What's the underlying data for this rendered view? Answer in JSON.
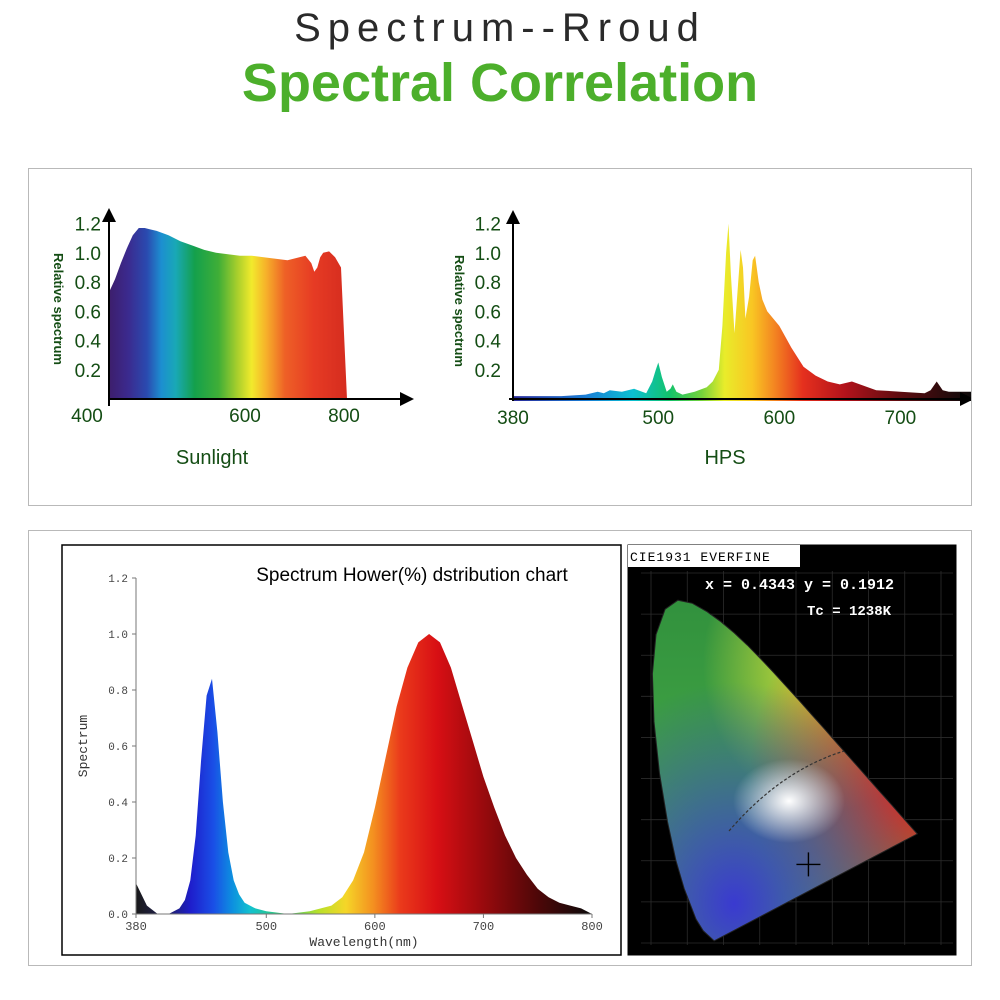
{
  "header": {
    "brand": "Spectrum--Rroud",
    "title": "Spectral Correlation"
  },
  "colors": {
    "title_green": "#4caf2b",
    "label_green": "#144d14"
  },
  "chart_data": [
    {
      "id": "sunlight",
      "type": "area",
      "caption": "Sunlight",
      "ylabel": "Relative spectrum",
      "xlim": [
        400,
        800
      ],
      "ylim": [
        0,
        1.3
      ],
      "x_ticks": [
        "400",
        "600",
        "800"
      ],
      "y_ticks": [
        "0.2",
        "0.4",
        "0.6",
        "0.8",
        "1.0",
        "1.2"
      ],
      "x": [
        400,
        410,
        420,
        430,
        440,
        450,
        460,
        470,
        480,
        500,
        520,
        540,
        560,
        580,
        600,
        620,
        640,
        660,
        680,
        700,
        720,
        730,
        740,
        745,
        750,
        755,
        760,
        770,
        780,
        790,
        800
      ],
      "y": [
        0.73,
        0.82,
        0.93,
        1.03,
        1.12,
        1.17,
        1.17,
        1.16,
        1.15,
        1.12,
        1.08,
        1.05,
        1.02,
        1.0,
        0.99,
        0.98,
        0.98,
        0.97,
        0.96,
        0.95,
        0.97,
        0.98,
        0.93,
        0.87,
        0.9,
        0.97,
        1.0,
        1.01,
        0.97,
        0.9,
        0.0
      ]
    },
    {
      "id": "hps",
      "type": "area",
      "caption": "HPS",
      "ylabel": "Relative spectrum",
      "xlim": [
        380,
        760
      ],
      "ylim": [
        0,
        1.3
      ],
      "x_ticks": [
        "380",
        "500",
        "600",
        "700"
      ],
      "y_ticks": [
        "0.2",
        "0.4",
        "0.6",
        "0.8",
        "1.0",
        "1.2"
      ],
      "x": [
        380,
        420,
        440,
        450,
        455,
        460,
        470,
        480,
        490,
        495,
        498,
        500,
        503,
        507,
        510,
        512,
        515,
        520,
        530,
        540,
        545,
        550,
        553,
        556,
        558,
        560,
        563,
        566,
        568,
        570,
        572,
        575,
        578,
        580,
        583,
        586,
        590,
        595,
        600,
        610,
        620,
        630,
        640,
        650,
        660,
        680,
        700,
        720,
        725,
        730,
        735,
        740,
        760
      ],
      "y": [
        0.02,
        0.02,
        0.03,
        0.05,
        0.04,
        0.06,
        0.05,
        0.07,
        0.04,
        0.12,
        0.2,
        0.25,
        0.15,
        0.05,
        0.07,
        0.1,
        0.05,
        0.03,
        0.05,
        0.08,
        0.12,
        0.2,
        0.5,
        1.0,
        1.2,
        0.85,
        0.45,
        0.8,
        1.02,
        0.9,
        0.55,
        0.7,
        0.95,
        0.98,
        0.8,
        0.68,
        0.6,
        0.55,
        0.5,
        0.35,
        0.22,
        0.16,
        0.12,
        0.1,
        0.12,
        0.06,
        0.05,
        0.04,
        0.06,
        0.12,
        0.06,
        0.05,
        0.05
      ]
    },
    {
      "id": "hower",
      "type": "area",
      "title": "Spectrum Hower(%) dstribution chart",
      "xlabel": "Wavelength(nm)",
      "ylabel": "Spectrum",
      "xlim": [
        380,
        800
      ],
      "ylim": [
        0,
        1.2
      ],
      "x_ticks": [
        "380",
        "500",
        "600",
        "700",
        "800"
      ],
      "y_ticks": [
        "0.0",
        "0.2",
        "0.4",
        "0.6",
        "0.8",
        "1.0",
        "1.2"
      ],
      "x": [
        380,
        390,
        400,
        410,
        420,
        425,
        430,
        435,
        440,
        445,
        450,
        455,
        460,
        465,
        470,
        475,
        480,
        490,
        500,
        520,
        540,
        560,
        570,
        580,
        590,
        600,
        610,
        620,
        630,
        640,
        650,
        660,
        670,
        680,
        690,
        700,
        710,
        720,
        730,
        740,
        750,
        760,
        770,
        780,
        790,
        800
      ],
      "y": [
        0.11,
        0.03,
        0.0,
        0.0,
        0.02,
        0.05,
        0.12,
        0.28,
        0.55,
        0.78,
        0.84,
        0.65,
        0.4,
        0.22,
        0.12,
        0.07,
        0.04,
        0.02,
        0.01,
        0.0,
        0.01,
        0.03,
        0.06,
        0.12,
        0.22,
        0.38,
        0.56,
        0.74,
        0.88,
        0.97,
        1.0,
        0.97,
        0.88,
        0.75,
        0.62,
        0.49,
        0.38,
        0.28,
        0.2,
        0.14,
        0.09,
        0.06,
        0.04,
        0.03,
        0.02,
        0.0
      ]
    },
    {
      "id": "cie",
      "type": "scatter",
      "title": "CIE1931 EVERFINE",
      "readout": {
        "coords": "x = 0.4343 y = 0.1912",
        "tc": "Tc = 1238K"
      },
      "point": {
        "x": 0.4343,
        "y": 0.1912
      },
      "xlim": [
        0,
        0.8
      ],
      "ylim": [
        0,
        0.9
      ]
    }
  ]
}
